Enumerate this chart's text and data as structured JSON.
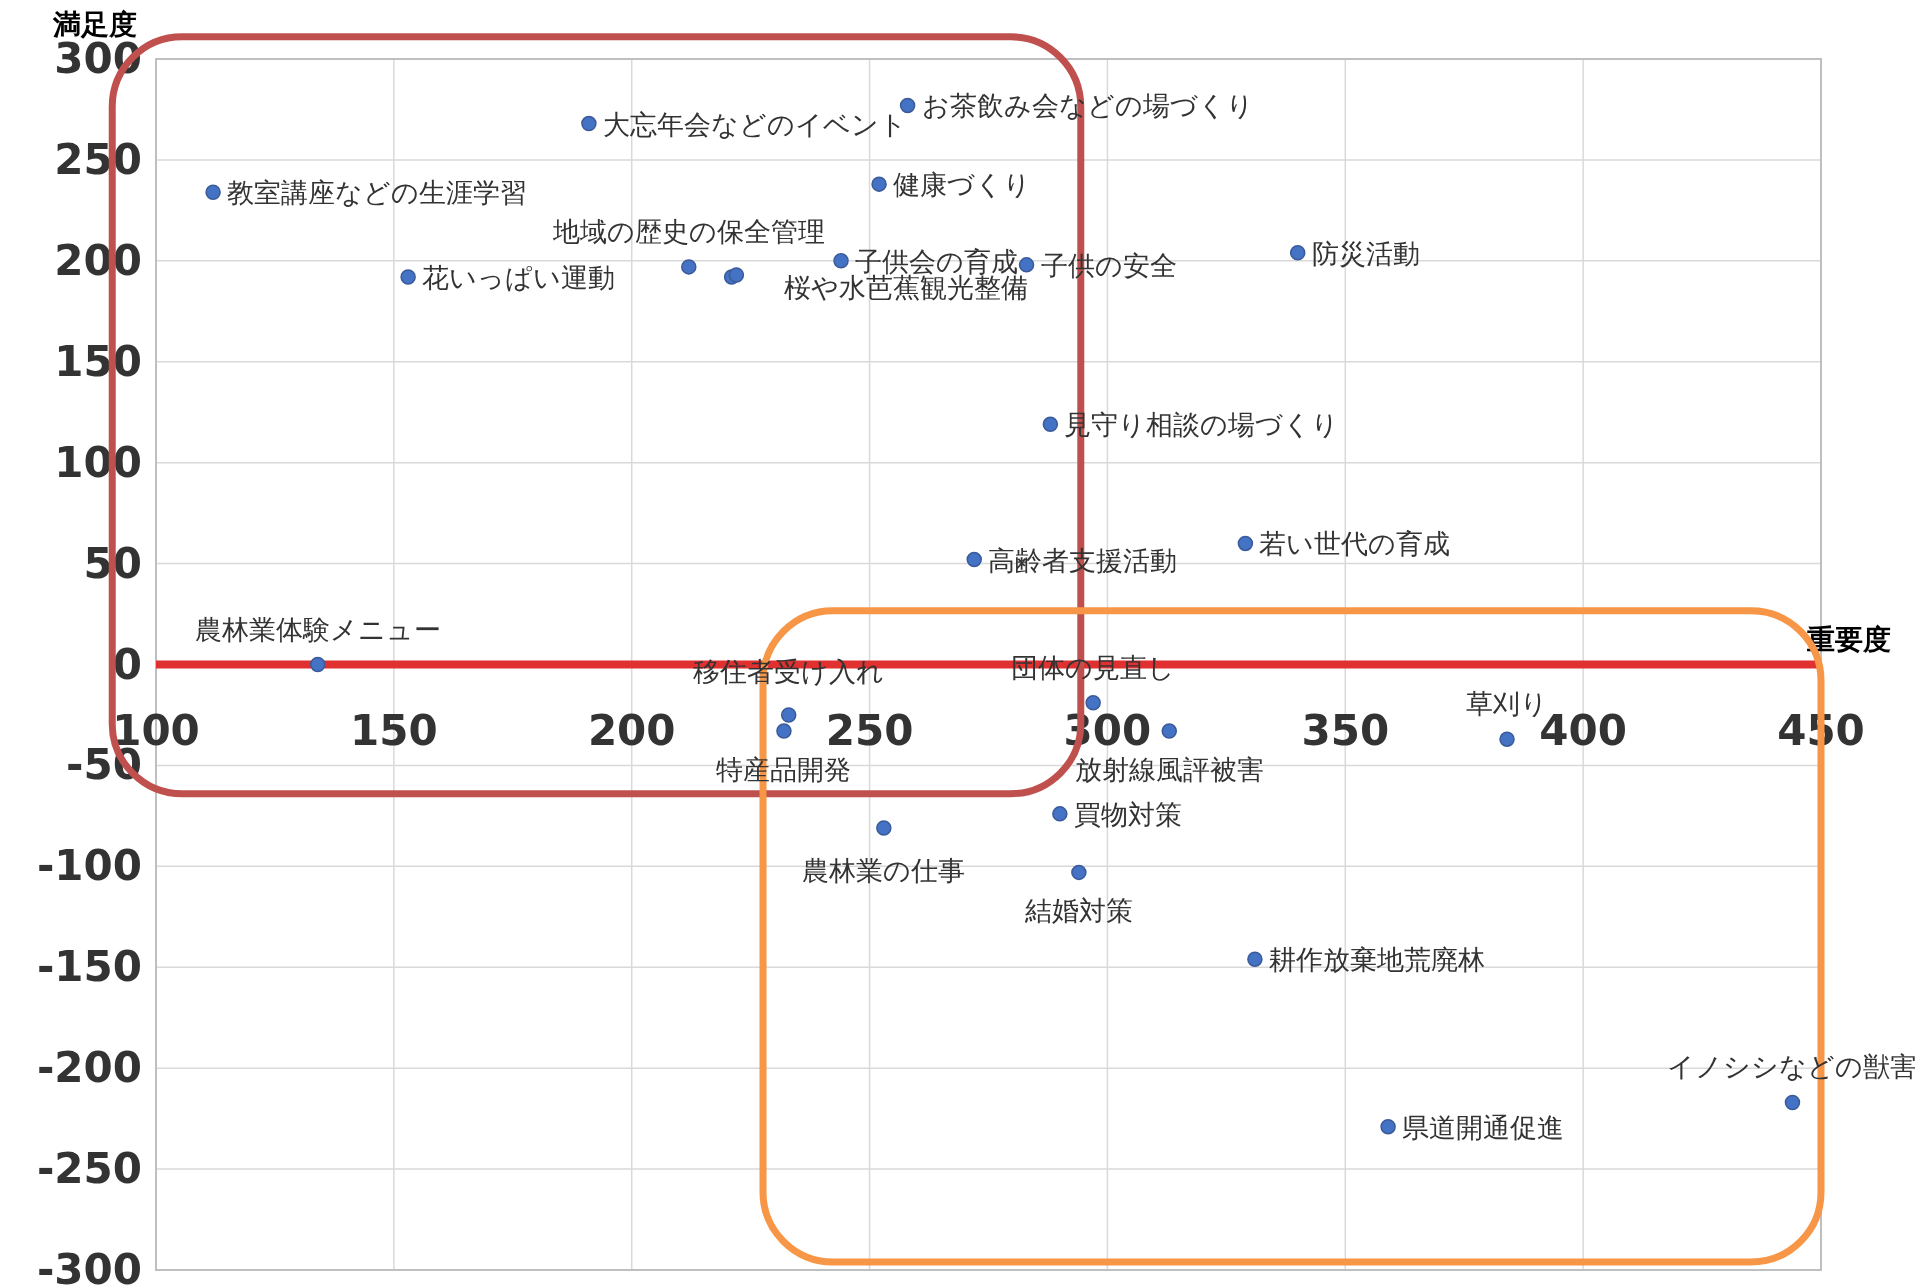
{
  "chart_data": {
    "type": "scatter",
    "xlabel": "重要度",
    "ylabel": "満足度",
    "x": [
      258,
      191,
      112,
      252,
      212,
      153,
      221,
      222,
      244,
      283,
      340,
      288,
      329,
      272,
      134,
      233,
      232,
      297,
      313,
      384,
      290,
      253,
      294,
      331,
      444,
      359
    ],
    "values": [
      277,
      268,
      234,
      238,
      197,
      192,
      192,
      193,
      200,
      198,
      204,
      119,
      60,
      52,
      0,
      -25,
      -33,
      -19,
      -33,
      -37,
      -74,
      -81,
      -103,
      -146,
      -217,
      -229
    ],
    "color": "#4472c4",
    "marker": "circle",
    "xlim": [
      100,
      450
    ],
    "xticks": [
      100,
      150,
      200,
      250,
      300,
      350,
      400,
      450
    ],
    "ylim": [
      -300,
      300
    ],
    "yticks": [
      -300,
      -250,
      -200,
      -150,
      -100,
      -50,
      0,
      50,
      100,
      150,
      200,
      250,
      300
    ],
    "grid": true,
    "annotations": [
      {
        "text": "お茶飲み会などの場づくり",
        "x": 258,
        "y": 277
      },
      {
        "text": "大忘年会などのイベント",
        "x": 191,
        "y": 268
      },
      {
        "text": "教室講座などの生涯学習",
        "x": 112,
        "y": 234
      },
      {
        "text": "健康づくり",
        "x": 252,
        "y": 238
      },
      {
        "text": "地域の歴史の保全管理",
        "x": 212,
        "y": 197
      },
      {
        "text": "花いっぱい運動",
        "x": 153,
        "y": 192
      },
      {
        "text": "桜や水芭蕉観光整備",
        "x": 222,
        "y": 193
      },
      {
        "text": "子供会の育成",
        "x": 244,
        "y": 200
      },
      {
        "text": "子供の安全",
        "x": 283,
        "y": 198
      },
      {
        "text": "防災活動",
        "x": 340,
        "y": 204
      },
      {
        "text": "見守り相談の場づくり",
        "x": 288,
        "y": 119
      },
      {
        "text": "若い世代の育成",
        "x": 329,
        "y": 60
      },
      {
        "text": "高齢者支援活動",
        "x": 272,
        "y": 52
      },
      {
        "text": "農林業体験メニュー",
        "x": 134,
        "y": 0
      },
      {
        "text": "移住者受け入れ",
        "x": 233,
        "y": -25
      },
      {
        "text": "特産品開発",
        "x": 232,
        "y": -33
      },
      {
        "text": "団体の見直し",
        "x": 297,
        "y": -19
      },
      {
        "text": "放射線風評被害",
        "x": 313,
        "y": -33
      },
      {
        "text": "草刈り",
        "x": 384,
        "y": -37
      },
      {
        "text": "買物対策",
        "x": 290,
        "y": -74
      },
      {
        "text": "農林業の仕事",
        "x": 253,
        "y": -81
      },
      {
        "text": "結婚対策",
        "x": 294,
        "y": -103
      },
      {
        "text": "耕作放棄地荒廃林",
        "x": 331,
        "y": -146
      },
      {
        "text": "イノシシなどの獣害",
        "x": 444,
        "y": -217
      },
      {
        "text": "県道開通促進",
        "x": 359,
        "y": -229
      }
    ]
  }
}
